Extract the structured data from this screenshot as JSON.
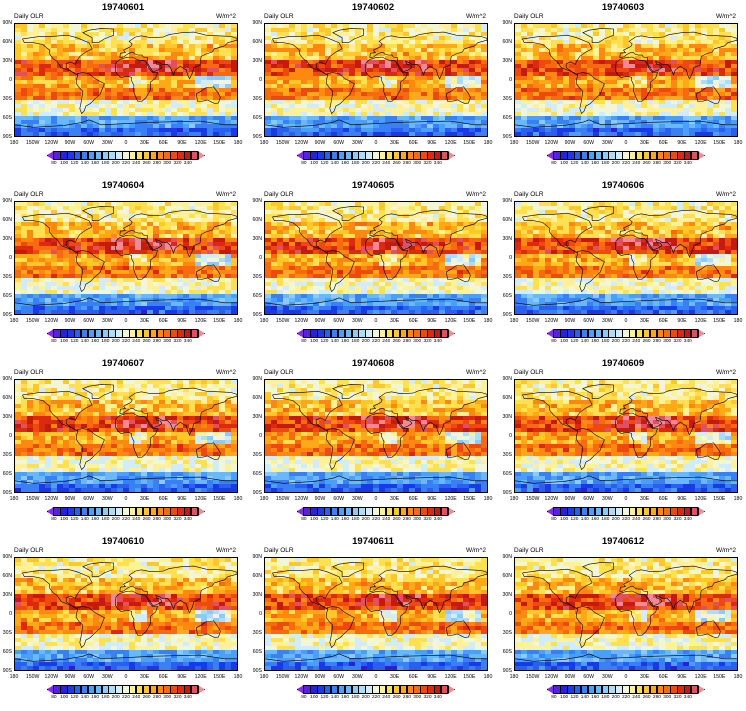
{
  "figure": {
    "panels": [
      {
        "date": "19740601",
        "left_title": "Daily OLR",
        "units": "W/m^2"
      },
      {
        "date": "19740602",
        "left_title": "Daily OLR",
        "units": "W/m^2"
      },
      {
        "date": "19740603",
        "left_title": "Daily OLR",
        "units": "W/m^2"
      },
      {
        "date": "19740604",
        "left_title": "Daily OLR",
        "units": "W/m^2"
      },
      {
        "date": "19740605",
        "left_title": "Daily OLR",
        "units": "W/m^2"
      },
      {
        "date": "19740606",
        "left_title": "Daily OLR",
        "units": "W/m^2"
      },
      {
        "date": "19740607",
        "left_title": "Daily OLR",
        "units": "W/m^2"
      },
      {
        "date": "19740608",
        "left_title": "Daily OLR",
        "units": "W/m^2"
      },
      {
        "date": "19740609",
        "left_title": "Daily OLR",
        "units": "W/m^2"
      },
      {
        "date": "19740610",
        "left_title": "Daily OLR",
        "units": "W/m^2"
      },
      {
        "date": "19740611",
        "left_title": "Daily OLR",
        "units": "W/m^2"
      },
      {
        "date": "19740612",
        "left_title": "Daily OLR",
        "units": "W/m^2"
      }
    ],
    "lat_labels": [
      "90N",
      "60N",
      "30N",
      "0",
      "30S",
      "60S",
      "90S"
    ],
    "lon_labels": [
      "180",
      "150W",
      "120W",
      "90W",
      "60W",
      "30W",
      "0",
      "30E",
      "60E",
      "90E",
      "120E",
      "150E",
      "180"
    ],
    "colorbar": {
      "labels": [
        "80",
        "100",
        "120",
        "140",
        "160",
        "180",
        "200",
        "220",
        "240",
        "260",
        "280",
        "300",
        "320",
        "340"
      ],
      "colors": [
        "#8a2be2",
        "#5a1fe0",
        "#2a20d8",
        "#1a3ae8",
        "#2a60f0",
        "#3a80f5",
        "#4aa0f8",
        "#6ab8fa",
        "#8ccafa",
        "#acdcfc",
        "#d0ecfd",
        "#f2f6d8",
        "#fff09a",
        "#ffe050",
        "#ffc828",
        "#ffa818",
        "#ff8810",
        "#f86a10",
        "#ee4a10",
        "#dc2a10",
        "#c41a10",
        "#e05060",
        "#f08a98"
      ]
    },
    "colors": {
      "ocean_warm": "#ff8a1e",
      "cold": "#3a70f0",
      "land_line": "#000000"
    }
  }
}
